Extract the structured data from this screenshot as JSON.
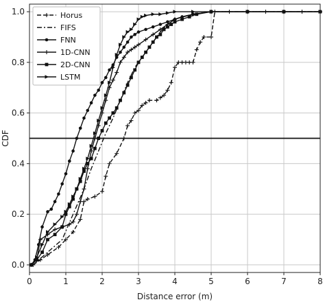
{
  "chart_data": {
    "type": "line",
    "xlabel": "Distance error (m)",
    "ylabel": "CDF",
    "xlim": [
      0,
      8
    ],
    "ylim": [
      -0.03,
      1.03
    ],
    "xticks": [
      0,
      1,
      2,
      3,
      4,
      5,
      6,
      7,
      8
    ],
    "yticks": [
      0.0,
      0.2,
      0.4,
      0.6,
      0.8,
      1.0
    ],
    "xtick_labels": [
      "0",
      "1",
      "2",
      "3",
      "4",
      "5",
      "6",
      "7",
      "8"
    ],
    "ytick_labels": [
      "0.0",
      "0.2",
      "0.4",
      "0.6",
      "0.8",
      "1.0"
    ],
    "grid": true,
    "legend_position": "top-left",
    "reference_line": {
      "y": 0.5
    },
    "series": [
      {
        "name": "Horus",
        "dash": "dashed",
        "marker": "plus",
        "x": [
          0.1,
          0.3,
          0.5,
          0.8,
          1.0,
          1.2,
          1.4,
          1.5,
          1.6,
          1.8,
          2.0,
          2.1,
          2.2,
          2.4,
          2.6,
          2.7,
          2.8,
          2.9,
          3.0,
          3.1,
          3.2,
          3.3,
          3.5,
          3.6,
          3.7,
          3.8,
          3.9,
          4.0,
          4.1,
          4.2,
          4.3,
          4.4,
          4.5,
          4.6,
          4.7,
          4.8,
          5.0,
          5.1,
          5.5,
          6.0,
          6.5,
          7.0,
          7.5,
          8.0
        ],
        "y": [
          0.0,
          0.02,
          0.04,
          0.07,
          0.1,
          0.13,
          0.18,
          0.25,
          0.26,
          0.27,
          0.29,
          0.35,
          0.4,
          0.44,
          0.5,
          0.55,
          0.57,
          0.6,
          0.61,
          0.63,
          0.64,
          0.65,
          0.65,
          0.66,
          0.67,
          0.69,
          0.72,
          0.78,
          0.8,
          0.8,
          0.8,
          0.8,
          0.8,
          0.85,
          0.88,
          0.9,
          0.9,
          1.0,
          1.0,
          1.0,
          1.0,
          1.0,
          1.0,
          1.0
        ]
      },
      {
        "name": "FIFS",
        "dash": "dashdot",
        "marker": "none",
        "x": [
          0.1,
          0.5,
          0.9,
          1.2,
          1.5,
          1.7,
          1.9,
          2.1,
          2.3,
          2.5,
          2.7,
          2.9,
          3.2,
          3.4,
          3.6,
          3.8,
          4.0,
          4.2,
          4.5,
          5.0,
          5.5,
          6.0,
          8.0
        ],
        "y": [
          0.0,
          0.05,
          0.1,
          0.2,
          0.3,
          0.38,
          0.45,
          0.52,
          0.58,
          0.65,
          0.72,
          0.78,
          0.84,
          0.88,
          0.92,
          0.95,
          0.97,
          0.98,
          0.99,
          1.0,
          1.0,
          1.0,
          1.0
        ]
      },
      {
        "name": "FNN",
        "dash": "solid",
        "marker": "dot",
        "x": [
          0.05,
          0.15,
          0.25,
          0.35,
          0.5,
          0.6,
          0.7,
          0.8,
          0.9,
          1.0,
          1.1,
          1.2,
          1.3,
          1.4,
          1.5,
          1.6,
          1.7,
          1.8,
          1.9,
          2.0,
          2.1,
          2.2,
          2.3,
          2.4,
          2.5,
          2.6,
          2.7,
          2.8,
          2.9,
          3.0,
          3.2,
          3.4,
          3.6,
          3.8,
          4.0,
          4.2,
          4.5,
          5.0,
          6.0,
          7.0,
          8.0
        ],
        "y": [
          0.0,
          0.02,
          0.08,
          0.15,
          0.21,
          0.22,
          0.25,
          0.28,
          0.32,
          0.36,
          0.41,
          0.45,
          0.5,
          0.54,
          0.58,
          0.61,
          0.64,
          0.67,
          0.69,
          0.72,
          0.74,
          0.77,
          0.79,
          0.82,
          0.84,
          0.86,
          0.88,
          0.9,
          0.91,
          0.92,
          0.93,
          0.94,
          0.95,
          0.96,
          0.97,
          0.98,
          0.99,
          1.0,
          1.0,
          1.0,
          1.0
        ]
      },
      {
        "name": "1D-CNN",
        "dash": "solid",
        "marker": "plus",
        "x": [
          0.05,
          0.2,
          0.3,
          0.5,
          0.7,
          0.9,
          1.1,
          1.2,
          1.3,
          1.4,
          1.5,
          1.6,
          1.7,
          1.8,
          1.9,
          2.0,
          2.1,
          2.2,
          2.3,
          2.4,
          2.5,
          2.6,
          2.7,
          2.8,
          2.9,
          3.0,
          3.2,
          3.4,
          3.6,
          3.8,
          4.0,
          4.5,
          5.0,
          6.0,
          7.0,
          8.0
        ],
        "y": [
          0.0,
          0.02,
          0.1,
          0.12,
          0.14,
          0.15,
          0.16,
          0.17,
          0.2,
          0.25,
          0.3,
          0.38,
          0.45,
          0.5,
          0.55,
          0.6,
          0.65,
          0.7,
          0.73,
          0.76,
          0.8,
          0.82,
          0.84,
          0.85,
          0.86,
          0.87,
          0.89,
          0.91,
          0.93,
          0.95,
          0.97,
          0.99,
          1.0,
          1.0,
          1.0,
          1.0
        ]
      },
      {
        "name": "2D-CNN",
        "dash": "solid",
        "marker": "square",
        "x": [
          0.05,
          0.2,
          0.35,
          0.5,
          0.7,
          0.9,
          1.0,
          1.1,
          1.2,
          1.3,
          1.4,
          1.5,
          1.6,
          1.7,
          1.8,
          1.9,
          2.0,
          2.1,
          2.2,
          2.3,
          2.4,
          2.5,
          2.6,
          2.7,
          2.8,
          2.9,
          3.0,
          3.1,
          3.2,
          3.3,
          3.4,
          3.5,
          3.6,
          3.7,
          3.8,
          3.9,
          4.0,
          4.2,
          4.4,
          4.6,
          5.0,
          6.0,
          7.0,
          8.0
        ],
        "y": [
          0.0,
          0.02,
          0.05,
          0.1,
          0.12,
          0.15,
          0.2,
          0.23,
          0.26,
          0.3,
          0.33,
          0.37,
          0.4,
          0.42,
          0.46,
          0.5,
          0.53,
          0.56,
          0.58,
          0.6,
          0.62,
          0.65,
          0.68,
          0.71,
          0.74,
          0.77,
          0.8,
          0.82,
          0.84,
          0.86,
          0.88,
          0.9,
          0.91,
          0.93,
          0.94,
          0.95,
          0.96,
          0.97,
          0.98,
          0.99,
          1.0,
          1.0,
          1.0,
          1.0
        ]
      },
      {
        "name": "LSTM",
        "dash": "solid",
        "marker": "triangle",
        "x": [
          0.05,
          0.2,
          0.35,
          0.5,
          0.7,
          0.9,
          1.0,
          1.1,
          1.2,
          1.3,
          1.4,
          1.5,
          1.6,
          1.7,
          1.8,
          1.9,
          2.0,
          2.1,
          2.2,
          2.3,
          2.4,
          2.5,
          2.6,
          2.7,
          2.8,
          2.9,
          3.0,
          3.1,
          3.2,
          3.4,
          3.6,
          3.8,
          4.0,
          4.5,
          5.0,
          6.0,
          7.0,
          8.0
        ],
        "y": [
          0.0,
          0.03,
          0.08,
          0.13,
          0.16,
          0.19,
          0.21,
          0.24,
          0.27,
          0.3,
          0.34,
          0.38,
          0.42,
          0.47,
          0.52,
          0.57,
          0.62,
          0.67,
          0.72,
          0.78,
          0.83,
          0.87,
          0.9,
          0.92,
          0.93,
          0.95,
          0.97,
          0.98,
          0.985,
          0.99,
          0.99,
          0.995,
          1.0,
          1.0,
          1.0,
          1.0,
          1.0,
          1.0
        ]
      }
    ]
  }
}
